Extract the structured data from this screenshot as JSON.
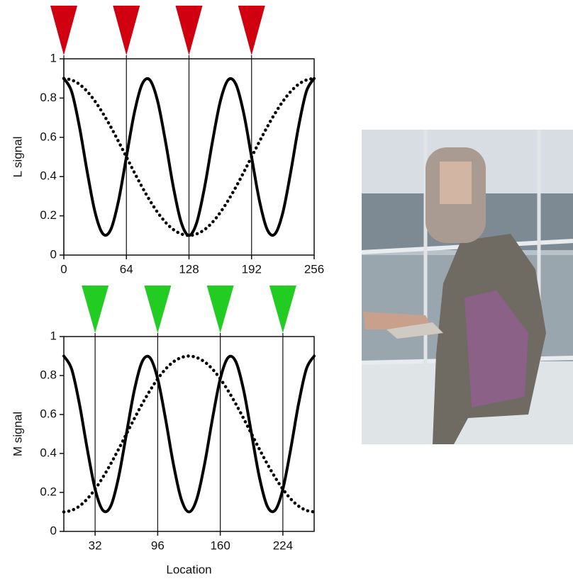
{
  "chart_data": [
    {
      "type": "line",
      "ylabel": "L signal",
      "x": [
        0,
        8,
        16,
        24,
        32,
        40,
        48,
        56,
        64,
        72,
        80,
        88,
        96,
        104,
        112,
        120,
        128,
        136,
        144,
        152,
        160,
        168,
        176,
        184,
        192,
        200,
        208,
        216,
        224,
        232,
        240,
        248,
        256
      ],
      "series": [
        {
          "color": "#000000",
          "style": "solid",
          "values": [
            0.9,
            0.833,
            0.653,
            0.422,
            0.217,
            0.108,
            0.13,
            0.278,
            0.5,
            0.722,
            0.87,
            0.892,
            0.783,
            0.578,
            0.347,
            0.167,
            0.1,
            0.167,
            0.347,
            0.578,
            0.783,
            0.892,
            0.87,
            0.722,
            0.5,
            0.278,
            0.13,
            0.108,
            0.217,
            0.422,
            0.653,
            0.833,
            0.9
          ]
        },
        {
          "color": "#000000",
          "style": "dotted",
          "values": [
            0.9,
            0.892,
            0.87,
            0.833,
            0.783,
            0.722,
            0.653,
            0.578,
            0.5,
            0.422,
            0.347,
            0.278,
            0.217,
            0.167,
            0.13,
            0.108,
            0.1,
            0.108,
            0.13,
            0.167,
            0.217,
            0.278,
            0.347,
            0.422,
            0.5,
            0.578,
            0.653,
            0.722,
            0.783,
            0.833,
            0.87,
            0.892,
            0.9
          ]
        }
      ],
      "markers": [
        0,
        64,
        128,
        192
      ],
      "marker_color": "#d00010",
      "xlim": [
        0,
        256
      ],
      "xticks": [
        0,
        64,
        128,
        192,
        256
      ],
      "ylim": [
        0,
        1
      ],
      "yticks": [
        0,
        0.2,
        0.4,
        0.6,
        0.8,
        1
      ]
    },
    {
      "type": "line",
      "ylabel": "M signal",
      "xlabel": "Location",
      "x": [
        0,
        8,
        16,
        24,
        32,
        40,
        48,
        56,
        64,
        72,
        80,
        88,
        96,
        104,
        112,
        120,
        128,
        136,
        144,
        152,
        160,
        168,
        176,
        184,
        192,
        200,
        208,
        216,
        224,
        232,
        240,
        248,
        256
      ],
      "series": [
        {
          "color": "#000000",
          "style": "solid",
          "values": [
            0.9,
            0.833,
            0.653,
            0.422,
            0.217,
            0.108,
            0.13,
            0.278,
            0.5,
            0.722,
            0.87,
            0.892,
            0.783,
            0.578,
            0.347,
            0.167,
            0.1,
            0.167,
            0.347,
            0.578,
            0.783,
            0.892,
            0.87,
            0.722,
            0.5,
            0.278,
            0.13,
            0.108,
            0.217,
            0.422,
            0.653,
            0.833,
            0.9
          ]
        },
        {
          "color": "#000000",
          "style": "dotted",
          "values": [
            0.1,
            0.108,
            0.13,
            0.167,
            0.217,
            0.278,
            0.347,
            0.422,
            0.5,
            0.578,
            0.653,
            0.722,
            0.783,
            0.833,
            0.87,
            0.892,
            0.9,
            0.892,
            0.87,
            0.833,
            0.783,
            0.722,
            0.653,
            0.578,
            0.5,
            0.422,
            0.347,
            0.278,
            0.217,
            0.167,
            0.13,
            0.108,
            0.1
          ]
        }
      ],
      "markers": [
        32,
        96,
        160,
        224
      ],
      "marker_color": "#22cc22",
      "xlim": [
        0,
        256
      ],
      "xticks": [
        32,
        96,
        160,
        224
      ],
      "ylim": [
        0,
        1
      ],
      "yticks": [
        0,
        0.2,
        0.4,
        0.6,
        0.8,
        1
      ]
    }
  ]
}
